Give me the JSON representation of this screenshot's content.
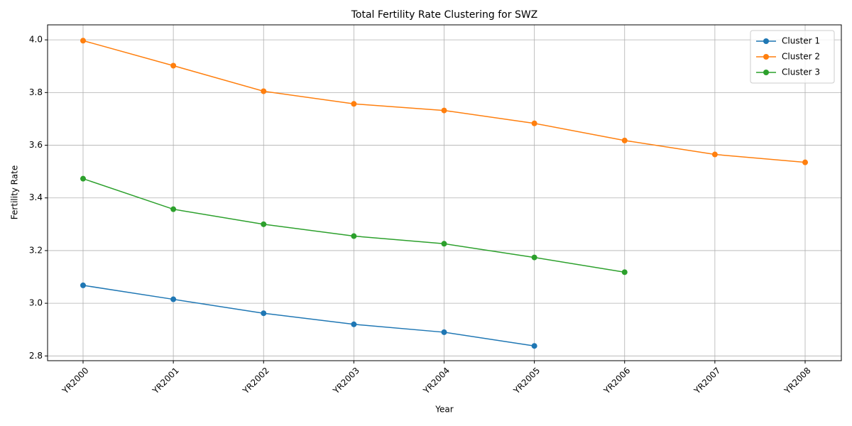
{
  "chart_data": {
    "type": "line",
    "title": "Total Fertility Rate Clustering for SWZ",
    "x_label": "Year",
    "y_label": "Fertility Rate",
    "categories": [
      "YR2000",
      "YR2001",
      "YR2002",
      "YR2003",
      "YR2004",
      "YR2005",
      "YR2006",
      "YR2007",
      "YR2008"
    ],
    "series": [
      {
        "name": "Cluster 1",
        "color": "#1f77b4",
        "values": [
          3.068,
          3.015,
          2.962,
          2.92,
          2.89,
          2.838,
          null,
          null,
          null
        ]
      },
      {
        "name": "Cluster 2",
        "color": "#ff7f0e",
        "values": [
          3.997,
          3.902,
          3.805,
          3.757,
          3.732,
          3.683,
          3.618,
          3.565,
          3.535
        ]
      },
      {
        "name": "Cluster 3",
        "color": "#2ca02c",
        "values": [
          3.473,
          3.357,
          3.3,
          3.255,
          3.226,
          3.174,
          3.118,
          null,
          null
        ]
      }
    ],
    "ylim": [
      2.782,
      4.057
    ],
    "yticks": [
      2.8,
      {
        "value": 3,
        "label": "3.0"
      },
      3.2,
      3.4,
      3.6,
      3.8,
      {
        "value": 4,
        "label": "4.0"
      }
    ],
    "grid": true,
    "legend": "upper right",
    "marker": "circle"
  }
}
